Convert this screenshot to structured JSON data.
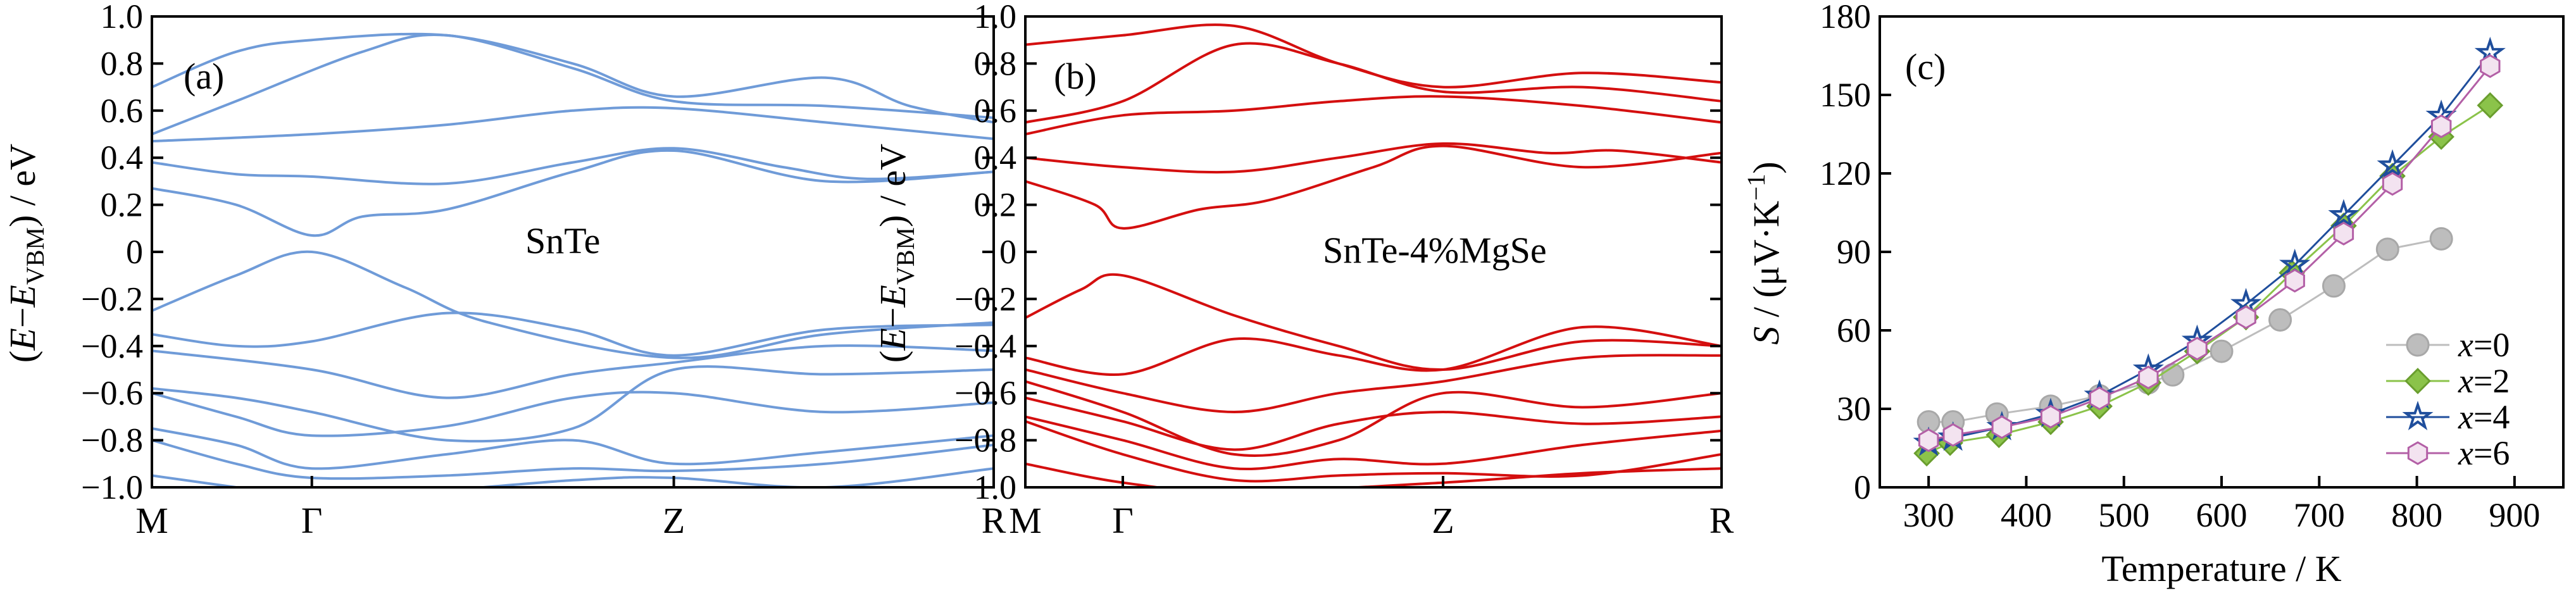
{
  "chart_data": [
    {
      "type": "line",
      "panel_label": "(a)",
      "annotation": "SnTe",
      "ylabel": {
        "pre": "(",
        "e1": "E",
        "minus": "−",
        "e2": "E",
        "sub": "VBM",
        "post": ") / eV"
      },
      "ylim": [
        -1.0,
        1.0
      ],
      "yticks": [
        "−1.0",
        "−0.8",
        "−0.6",
        "−0.4",
        "−0.2",
        "0",
        "0.2",
        "0.4",
        "0.6",
        "0.8",
        "1.0"
      ],
      "xticks": [
        "M",
        "Γ",
        "Z",
        "R"
      ],
      "colors": {
        "line": "#6f9bd8"
      },
      "kpath": [
        0,
        0.19,
        0.62,
        1.0
      ],
      "bands": [
        [
          [
            0,
            0.7
          ],
          [
            0.1,
            0.85
          ],
          [
            0.19,
            0.9
          ],
          [
            0.35,
            0.92
          ],
          [
            0.5,
            0.8
          ],
          [
            0.62,
            0.66
          ],
          [
            0.8,
            0.74
          ],
          [
            0.9,
            0.62
          ],
          [
            1,
            0.55
          ]
        ],
        [
          [
            0,
            0.5
          ],
          [
            0.1,
            0.64
          ],
          [
            0.25,
            0.85
          ],
          [
            0.35,
            0.92
          ],
          [
            0.5,
            0.78
          ],
          [
            0.62,
            0.64
          ],
          [
            0.8,
            0.62
          ],
          [
            1,
            0.57
          ]
        ],
        [
          [
            0,
            0.47
          ],
          [
            0.19,
            0.5
          ],
          [
            0.35,
            0.54
          ],
          [
            0.5,
            0.6
          ],
          [
            0.62,
            0.61
          ],
          [
            0.8,
            0.55
          ],
          [
            1,
            0.48
          ]
        ],
        [
          [
            0,
            0.38
          ],
          [
            0.1,
            0.33
          ],
          [
            0.19,
            0.32
          ],
          [
            0.35,
            0.29
          ],
          [
            0.5,
            0.38
          ],
          [
            0.62,
            0.44
          ],
          [
            0.75,
            0.36
          ],
          [
            0.85,
            0.31
          ],
          [
            1,
            0.34
          ]
        ],
        [
          [
            0,
            0.27
          ],
          [
            0.1,
            0.2
          ],
          [
            0.19,
            0.07
          ],
          [
            0.25,
            0.15
          ],
          [
            0.35,
            0.18
          ],
          [
            0.5,
            0.34
          ],
          [
            0.62,
            0.43
          ],
          [
            0.8,
            0.3
          ],
          [
            1,
            0.34
          ]
        ],
        [
          [
            0,
            -0.25
          ],
          [
            0.1,
            -0.1
          ],
          [
            0.19,
            0.0
          ],
          [
            0.3,
            -0.15
          ],
          [
            0.4,
            -0.3
          ],
          [
            0.62,
            -0.45
          ],
          [
            0.8,
            -0.35
          ],
          [
            1,
            -0.3
          ]
        ],
        [
          [
            0,
            -0.35
          ],
          [
            0.1,
            -0.4
          ],
          [
            0.19,
            -0.38
          ],
          [
            0.35,
            -0.26
          ],
          [
            0.5,
            -0.33
          ],
          [
            0.62,
            -0.44
          ],
          [
            0.8,
            -0.33
          ],
          [
            1,
            -0.31
          ]
        ],
        [
          [
            0,
            -0.42
          ],
          [
            0.19,
            -0.5
          ],
          [
            0.35,
            -0.62
          ],
          [
            0.5,
            -0.52
          ],
          [
            0.62,
            -0.47
          ],
          [
            0.8,
            -0.4
          ],
          [
            1,
            -0.42
          ]
        ],
        [
          [
            0,
            -0.58
          ],
          [
            0.1,
            -0.62
          ],
          [
            0.19,
            -0.68
          ],
          [
            0.35,
            -0.8
          ],
          [
            0.5,
            -0.75
          ],
          [
            0.62,
            -0.5
          ],
          [
            0.8,
            -0.52
          ],
          [
            1,
            -0.5
          ]
        ],
        [
          [
            0,
            -0.6
          ],
          [
            0.1,
            -0.7
          ],
          [
            0.19,
            -0.78
          ],
          [
            0.35,
            -0.74
          ],
          [
            0.5,
            -0.62
          ],
          [
            0.62,
            -0.6
          ],
          [
            0.8,
            -0.68
          ],
          [
            1,
            -0.64
          ]
        ],
        [
          [
            0,
            -0.75
          ],
          [
            0.1,
            -0.82
          ],
          [
            0.19,
            -0.92
          ],
          [
            0.35,
            -0.86
          ],
          [
            0.5,
            -0.8
          ],
          [
            0.62,
            -0.9
          ],
          [
            0.8,
            -0.85
          ],
          [
            1,
            -0.78
          ]
        ],
        [
          [
            0,
            -0.8
          ],
          [
            0.1,
            -0.9
          ],
          [
            0.19,
            -0.96
          ],
          [
            0.35,
            -0.95
          ],
          [
            0.5,
            -0.92
          ],
          [
            0.62,
            -0.93
          ],
          [
            0.8,
            -0.9
          ],
          [
            1,
            -0.82
          ]
        ],
        [
          [
            0,
            -0.95
          ],
          [
            0.1,
            -1.0
          ],
          [
            0.2,
            -1.05
          ],
          [
            0.5,
            -0.97
          ],
          [
            0.62,
            -0.96
          ],
          [
            0.8,
            -1.0
          ],
          [
            1,
            -0.92
          ]
        ]
      ]
    },
    {
      "type": "line",
      "panel_label": "(b)",
      "annotation": "SnTe-4%MgSe",
      "ylabel": {
        "pre": "(",
        "e1": "E",
        "minus": "−",
        "e2": "E",
        "sub": "VBM",
        "post": ") / eV"
      },
      "ylim": [
        -1.0,
        1.0
      ],
      "yticks": [
        "−1.0",
        "−0.8",
        "−0.6",
        "−0.4",
        "−0.2",
        "0",
        "0.2",
        "0.4",
        "0.6",
        "0.8",
        "1.0"
      ],
      "xticks": [
        "M",
        "Γ",
        "Z",
        "R"
      ],
      "colors": {
        "line": "#d40f0f"
      },
      "kpath": [
        0,
        0.14,
        0.6,
        1.0
      ],
      "bands": [
        [
          [
            0,
            0.88
          ],
          [
            0.14,
            0.92
          ],
          [
            0.3,
            0.96
          ],
          [
            0.45,
            0.8
          ],
          [
            0.6,
            0.7
          ],
          [
            0.8,
            0.76
          ],
          [
            1,
            0.72
          ]
        ],
        [
          [
            0,
            0.55
          ],
          [
            0.14,
            0.64
          ],
          [
            0.3,
            0.88
          ],
          [
            0.45,
            0.8
          ],
          [
            0.6,
            0.68
          ],
          [
            0.8,
            0.7
          ],
          [
            1,
            0.64
          ]
        ],
        [
          [
            0,
            0.5
          ],
          [
            0.14,
            0.58
          ],
          [
            0.3,
            0.6
          ],
          [
            0.45,
            0.64
          ],
          [
            0.6,
            0.66
          ],
          [
            0.8,
            0.62
          ],
          [
            1,
            0.55
          ]
        ],
        [
          [
            0,
            0.4
          ],
          [
            0.14,
            0.36
          ],
          [
            0.3,
            0.34
          ],
          [
            0.45,
            0.4
          ],
          [
            0.6,
            0.46
          ],
          [
            0.75,
            0.42
          ],
          [
            0.85,
            0.43
          ],
          [
            1,
            0.38
          ]
        ],
        [
          [
            0,
            0.3
          ],
          [
            0.1,
            0.2
          ],
          [
            0.14,
            0.1
          ],
          [
            0.25,
            0.18
          ],
          [
            0.35,
            0.22
          ],
          [
            0.5,
            0.36
          ],
          [
            0.6,
            0.45
          ],
          [
            0.8,
            0.36
          ],
          [
            1,
            0.42
          ]
        ],
        [
          [
            0,
            -0.28
          ],
          [
            0.08,
            -0.16
          ],
          [
            0.14,
            -0.1
          ],
          [
            0.3,
            -0.27
          ],
          [
            0.45,
            -0.4
          ],
          [
            0.6,
            -0.5
          ],
          [
            0.8,
            -0.38
          ],
          [
            1,
            -0.4
          ]
        ],
        [
          [
            0,
            -0.45
          ],
          [
            0.14,
            -0.52
          ],
          [
            0.3,
            -0.37
          ],
          [
            0.45,
            -0.44
          ],
          [
            0.6,
            -0.5
          ],
          [
            0.8,
            -0.32
          ],
          [
            1,
            -0.4
          ]
        ],
        [
          [
            0,
            -0.5
          ],
          [
            0.14,
            -0.6
          ],
          [
            0.3,
            -0.68
          ],
          [
            0.45,
            -0.6
          ],
          [
            0.6,
            -0.55
          ],
          [
            0.8,
            -0.45
          ],
          [
            1,
            -0.44
          ]
        ],
        [
          [
            0,
            -0.55
          ],
          [
            0.14,
            -0.68
          ],
          [
            0.3,
            -0.86
          ],
          [
            0.45,
            -0.8
          ],
          [
            0.6,
            -0.6
          ],
          [
            0.8,
            -0.66
          ],
          [
            1,
            -0.6
          ]
        ],
        [
          [
            0,
            -0.62
          ],
          [
            0.14,
            -0.72
          ],
          [
            0.3,
            -0.84
          ],
          [
            0.45,
            -0.73
          ],
          [
            0.6,
            -0.68
          ],
          [
            0.8,
            -0.73
          ],
          [
            1,
            -0.7
          ]
        ],
        [
          [
            0,
            -0.7
          ],
          [
            0.14,
            -0.8
          ],
          [
            0.3,
            -0.92
          ],
          [
            0.45,
            -0.88
          ],
          [
            0.6,
            -0.9
          ],
          [
            0.8,
            -0.82
          ],
          [
            1,
            -0.76
          ]
        ],
        [
          [
            0,
            -0.72
          ],
          [
            0.14,
            -0.86
          ],
          [
            0.3,
            -0.97
          ],
          [
            0.45,
            -0.95
          ],
          [
            0.6,
            -0.94
          ],
          [
            0.8,
            -0.95
          ],
          [
            1,
            -0.86
          ]
        ],
        [
          [
            0,
            -0.9
          ],
          [
            0.14,
            -0.98
          ],
          [
            0.3,
            -1.02
          ],
          [
            0.6,
            -0.98
          ],
          [
            0.8,
            -0.94
          ],
          [
            1,
            -0.92
          ]
        ]
      ]
    },
    {
      "type": "line",
      "panel_label": "(c)",
      "ylabel": {
        "s": "S",
        "mid": " / (μV·K",
        "sup": "−1",
        "end": ")"
      },
      "xlabel": "Temperature / K",
      "xlim": [
        250,
        950
      ],
      "ylim": [
        0,
        180
      ],
      "xticks": [
        300,
        400,
        500,
        600,
        700,
        800,
        900
      ],
      "yticks": [
        0,
        30,
        60,
        90,
        120,
        150,
        180
      ],
      "legend_position": "bottom-right",
      "series": [
        {
          "name": "x=0",
          "var": "x",
          "eq": "=0",
          "color": "#bdbdbd",
          "edge": "#a8a8a8",
          "marker": "circle",
          "x": [
            300,
            325,
            370,
            425,
            475,
            525,
            550,
            600,
            660,
            715,
            770,
            825
          ],
          "y": [
            25,
            25,
            28,
            31,
            35,
            40,
            43,
            52,
            64,
            77,
            91,
            95
          ]
        },
        {
          "name": "x=2",
          "var": "x",
          "eq": "=2",
          "color": "#8bc34a",
          "edge": "#6a9e2e",
          "marker": "diamond",
          "x": [
            298,
            322,
            372,
            425,
            475,
            525,
            575,
            625,
            672,
            725,
            775,
            825,
            875
          ],
          "y": [
            13,
            17,
            20,
            25,
            31,
            40,
            52,
            65,
            82,
            100,
            119,
            134,
            146
          ]
        },
        {
          "name": "x=4",
          "var": "x",
          "eq": "=4",
          "color": "#1f4e9c",
          "edge": "#1f4e9c",
          "marker": "star",
          "x": [
            300,
            325,
            375,
            425,
            475,
            525,
            575,
            625,
            675,
            725,
            775,
            825,
            875
          ],
          "y": [
            17,
            19,
            23,
            28,
            35,
            45,
            56,
            70,
            85,
            104,
            123,
            142,
            166
          ]
        },
        {
          "name": "x=6",
          "var": "x",
          "eq": "=6",
          "color": "#b35fa6",
          "edge": "#b35fa6",
          "marker": "hexagon",
          "x": [
            300,
            325,
            375,
            425,
            475,
            525,
            575,
            625,
            675,
            725,
            775,
            825,
            875
          ],
          "y": [
            18,
            20,
            23,
            27,
            34,
            42,
            53,
            65,
            79,
            97,
            116,
            138,
            161
          ]
        }
      ]
    }
  ]
}
